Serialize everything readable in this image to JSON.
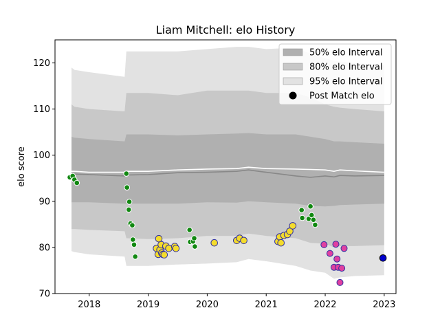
{
  "chart_data": {
    "type": "scatter",
    "title": "Liam Mitchell: elo History",
    "xlabel": "",
    "ylabel": "elo score",
    "xlim": [
      2017.42,
      2023.2
    ],
    "ylim": [
      70,
      125
    ],
    "x_ticks": [
      2018,
      2019,
      2020,
      2021,
      2022,
      2023
    ],
    "y_ticks": [
      70,
      80,
      90,
      100,
      110,
      120
    ],
    "grid": false,
    "legend_position": "top-right",
    "legend": [
      {
        "label": "50% elo Interval",
        "kind": "band",
        "color": "#b0b0b0"
      },
      {
        "label": "80% elo Interval",
        "kind": "band",
        "color": "#c8c8c8"
      },
      {
        "label": "95% elo Interval",
        "kind": "band",
        "color": "#e2e2e2"
      },
      {
        "label": "Post Match elo",
        "kind": "marker",
        "color": "#000000"
      }
    ],
    "colors": {
      "band50": "#b0b0b0",
      "band80": "#c8c8c8",
      "band95": "#e2e2e2",
      "mean_line": "#888888",
      "upper_line": "#ffffff",
      "point_green": "#118811",
      "point_yellow": "#f4dc2c",
      "point_pink": "#e040a0",
      "point_edge_blue": "#3030a0",
      "point_final": "#0000cc"
    },
    "bands": {
      "x": [
        2017.7,
        2017.75,
        2018.0,
        2018.6,
        2018.63,
        2019.0,
        2019.5,
        2020.0,
        2020.5,
        2020.7,
        2021.0,
        2021.5,
        2021.75,
        2022.0,
        2022.15,
        2022.25,
        2022.5,
        2023.0
      ],
      "p95_hi": [
        119,
        118.5,
        118,
        117,
        122.5,
        122.5,
        122.5,
        123,
        123.5,
        123.5,
        123,
        123.3,
        122,
        121,
        120.5,
        120.3,
        120,
        119.5
      ],
      "p80_hi": [
        111,
        110.5,
        110,
        109.5,
        113.5,
        113.5,
        113,
        114,
        114,
        114,
        113.5,
        113.5,
        112.5,
        111,
        110.5,
        110.3,
        110,
        109.5
      ],
      "p50_hi": [
        104,
        103.8,
        103.5,
        103,
        104.5,
        104.5,
        104.3,
        104.5,
        104.7,
        104.8,
        104.5,
        104.5,
        104,
        103.5,
        103,
        103,
        102.8,
        102.5
      ],
      "mean": [
        96,
        95.9,
        95.8,
        95.5,
        95.7,
        95.8,
        96.2,
        96.3,
        96.5,
        96.8,
        96.3,
        95.5,
        95.2,
        95.5,
        95.3,
        95.6,
        95.5,
        95.6
      ],
      "upper": [
        96.5,
        96.5,
        96.3,
        96.3,
        96.5,
        96.5,
        96.8,
        97,
        97.1,
        97.4,
        97.1,
        97,
        96.9,
        96.8,
        96.5,
        96.8,
        96.6,
        96.3
      ],
      "p50_lo": [
        89.8,
        89.8,
        89.8,
        89.5,
        89.5,
        89.5,
        89.5,
        89.8,
        89.7,
        90,
        89.8,
        89.5,
        89,
        88.9,
        89,
        89.2,
        89.3,
        89.5
      ],
      "p80_lo": [
        84,
        84,
        83.8,
        83.5,
        82,
        81.8,
        82,
        82.5,
        82.5,
        83,
        82.5,
        82,
        81,
        80.8,
        80,
        80.3,
        80.3,
        80.5
      ],
      "p95_lo": [
        79.2,
        79,
        78.5,
        78,
        76,
        76,
        76.3,
        76.5,
        76.8,
        77.5,
        77,
        76,
        75,
        74.5,
        73.2,
        73.5,
        73.8,
        74
      ]
    },
    "series": [
      {
        "category": "green",
        "x": [
          2017.67,
          2017.72,
          2017.75,
          2017.79,
          2018.63,
          2018.64,
          2018.68,
          2018.67,
          2018.7,
          2018.73,
          2018.74,
          2018.76,
          2018.78,
          2019.7,
          2019.71,
          2019.76,
          2019.78,
          2019.79,
          2021.6,
          2021.61,
          2021.72,
          2021.75,
          2021.77,
          2021.8,
          2021.83
        ],
        "y": [
          95.2,
          95.5,
          94.7,
          94.0,
          96.0,
          93.0,
          89.9,
          88.2,
          85.2,
          84.8,
          81.7,
          80.6,
          78.0,
          83.8,
          81.2,
          81.3,
          82.0,
          80.2,
          88.1,
          86.4,
          86.2,
          88.9,
          87.0,
          86.0,
          84.9
        ]
      },
      {
        "category": "yellow",
        "x": [
          2019.14,
          2019.17,
          2019.18,
          2019.2,
          2019.22,
          2019.23,
          2019.25,
          2019.27,
          2019.3,
          2019.35,
          2019.45,
          2019.47,
          2020.12,
          2020.5,
          2020.55,
          2020.62,
          2021.2,
          2021.23,
          2021.25,
          2021.3,
          2021.36,
          2021.4,
          2021.45
        ],
        "y": [
          79.8,
          78.5,
          81.9,
          79.5,
          80.6,
          78.8,
          78.5,
          78.4,
          80.3,
          79.8,
          80.2,
          79.8,
          81.0,
          81.5,
          82.0,
          81.5,
          81.3,
          82.3,
          81.0,
          82.6,
          82.8,
          83.5,
          84.7
        ]
      },
      {
        "category": "pink",
        "x": [
          2021.98,
          2022.08,
          2022.15,
          2022.18,
          2022.2,
          2022.22,
          2022.25,
          2022.28,
          2022.32
        ],
        "y": [
          80.6,
          78.7,
          75.7,
          80.7,
          77.5,
          75.7,
          72.4,
          75.5,
          79.8
        ]
      },
      {
        "category": "final",
        "x": [
          2022.98
        ],
        "y": [
          77.7
        ]
      }
    ]
  }
}
